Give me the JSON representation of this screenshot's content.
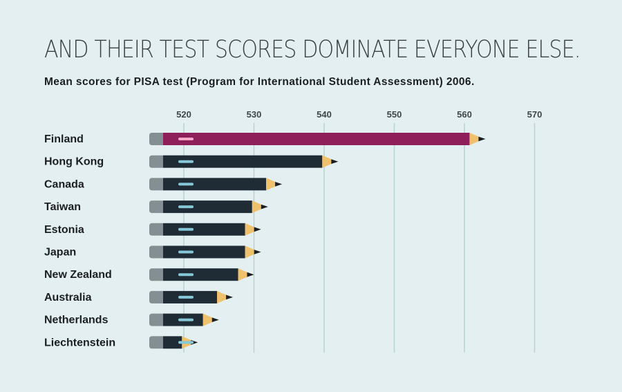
{
  "header": {
    "title": "AND THEIR TEST SCORES DOMINATE EVERYONE ELSE.",
    "subtitle": "Mean scores for PISA test (Program for International Student Assessment) 2006."
  },
  "chart_data": {
    "type": "bar",
    "orientation": "horizontal",
    "title": "AND THEIR TEST SCORES DOMINATE EVERYONE ELSE.",
    "subtitle": "Mean scores for PISA test (Program for International Student Assessment) 2006.",
    "categories": [
      "Finland",
      "Hong Kong",
      "Canada",
      "Taiwan",
      "Estonia",
      "Japan",
      "New Zealand",
      "Australia",
      "Netherlands",
      "Liechtenstein"
    ],
    "values": [
      563,
      542,
      534,
      532,
      531,
      531,
      530,
      527,
      525,
      522
    ],
    "xticks": [
      520,
      530,
      540,
      550,
      560,
      570
    ],
    "xlim": [
      515,
      572
    ],
    "xaxis_position": "top",
    "grid": true,
    "legend": "none",
    "highlight_category": "Finland",
    "colors": {
      "background": "#e3eff0",
      "highlight_bar": "#8f1f5a",
      "bar": "#1f2b35",
      "eraser": "#848f93",
      "pencil_wood": "#efc16c",
      "pencil_tip": "#1b1d1f",
      "stripe": "#86c8d7",
      "highlight_stripe": "#f3a8c7",
      "gridline": "#b4d2cd",
      "tick_label": "#3f4649",
      "category_label": "#1c1f22"
    }
  }
}
